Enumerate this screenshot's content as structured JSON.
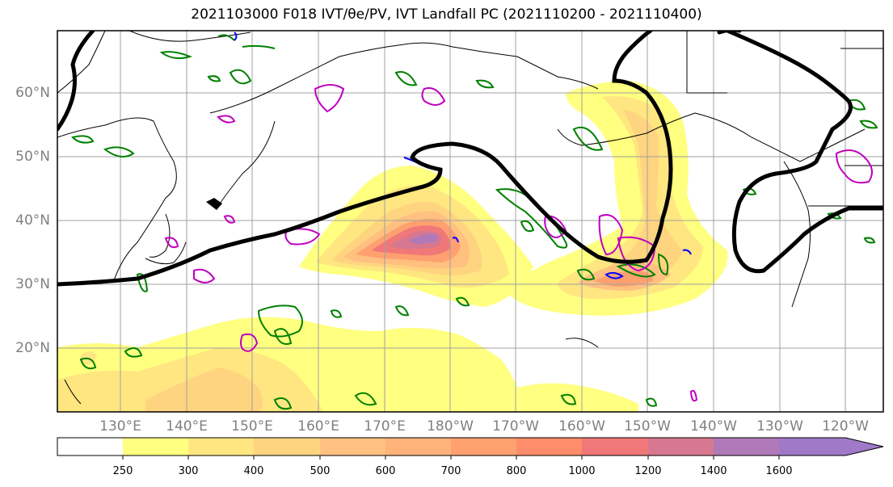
{
  "title": "2021103000 F018 IVT/θe/PV, IVT Landfall PC (2021110200 - 2021110400)",
  "map": {
    "region": "North Pacific",
    "lat_labels": [
      "60°N",
      "50°N",
      "40°N",
      "30°N",
      "20°N"
    ],
    "lon_labels": [
      "130°E",
      "140°E",
      "150°E",
      "160°E",
      "170°E",
      "180°W",
      "170°W",
      "160°W",
      "150°W",
      "140°W",
      "130°W",
      "120°W"
    ],
    "layers": [
      "IVT filled contours",
      "theta-e contours (green)",
      "PV contours (magenta)",
      "PV contours (blue)",
      "IVT landfall PC contour (black)"
    ],
    "colors": {
      "ivt_250": "#ffff80",
      "ivt_300": "#ffe680",
      "ivt_400": "#ffd480",
      "ivt_500": "#ffc080",
      "ivt_600": "#ffb27a",
      "ivt_700": "#ffa070",
      "ivt_800": "#ff8c6a",
      "ivt_1000": "#f07878",
      "ivt_1200": "#d87890",
      "ivt_1400": "#b07ab8",
      "ivt_1600": "#a07ac8",
      "theta_e": "#008000",
      "pv_pos": "#c000c0",
      "pv_neg": "#0000ff",
      "pc": "#000000",
      "coast": "#000000",
      "grid": "#a0a0a0"
    }
  },
  "colorbar": {
    "ticks": [
      "250",
      "300",
      "400",
      "500",
      "600",
      "700",
      "800",
      "1000",
      "1200",
      "1400",
      "1600"
    ],
    "extend": "max"
  }
}
